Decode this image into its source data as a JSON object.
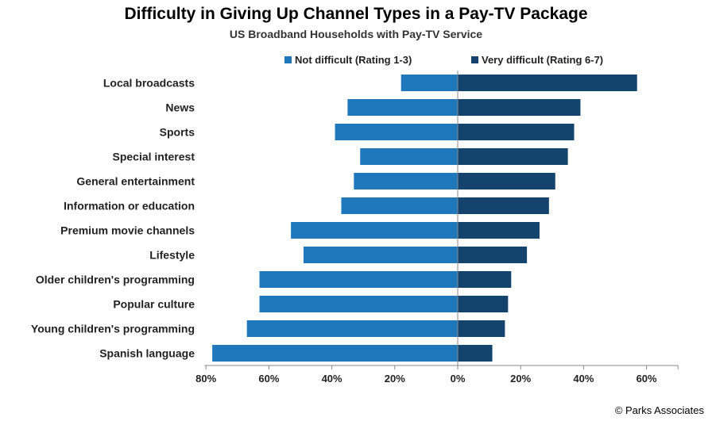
{
  "chart_data": {
    "type": "bar",
    "orientation": "horizontal-diverging",
    "title": "Difficulty in Giving Up Channel Types in a Pay-TV Package",
    "subtitle": "US Broadband Households with Pay-TV Service",
    "categories": [
      "Local broadcasts",
      "News",
      "Sports",
      "Special interest",
      "General entertainment",
      "Information or education",
      "Premium movie channels",
      "Lifestyle",
      "Older children's programming",
      "Popular culture",
      "Young children's programming",
      "Spanish language"
    ],
    "series": [
      {
        "name": "Not difficult (Rating 1-3)",
        "color": "#1F77BC",
        "side": "left",
        "values": [
          18,
          35,
          39,
          31,
          33,
          37,
          53,
          49,
          63,
          63,
          67,
          78
        ]
      },
      {
        "name": "Very difficult (Rating 6-7)",
        "color": "#14436E",
        "side": "right",
        "values": [
          57,
          39,
          37,
          35,
          31,
          29,
          26,
          22,
          17,
          16,
          15,
          11
        ]
      }
    ],
    "xlim": [
      -80,
      70
    ],
    "xticks": [
      -80,
      -60,
      -40,
      -20,
      0,
      20,
      40,
      60
    ],
    "xtick_labels": [
      "80%",
      "60%",
      "40%",
      "20%",
      "0%",
      "20%",
      "40%",
      "60%"
    ],
    "legend_position": "top",
    "grid": false
  },
  "footer": {
    "copyright": "© Parks Associates"
  }
}
